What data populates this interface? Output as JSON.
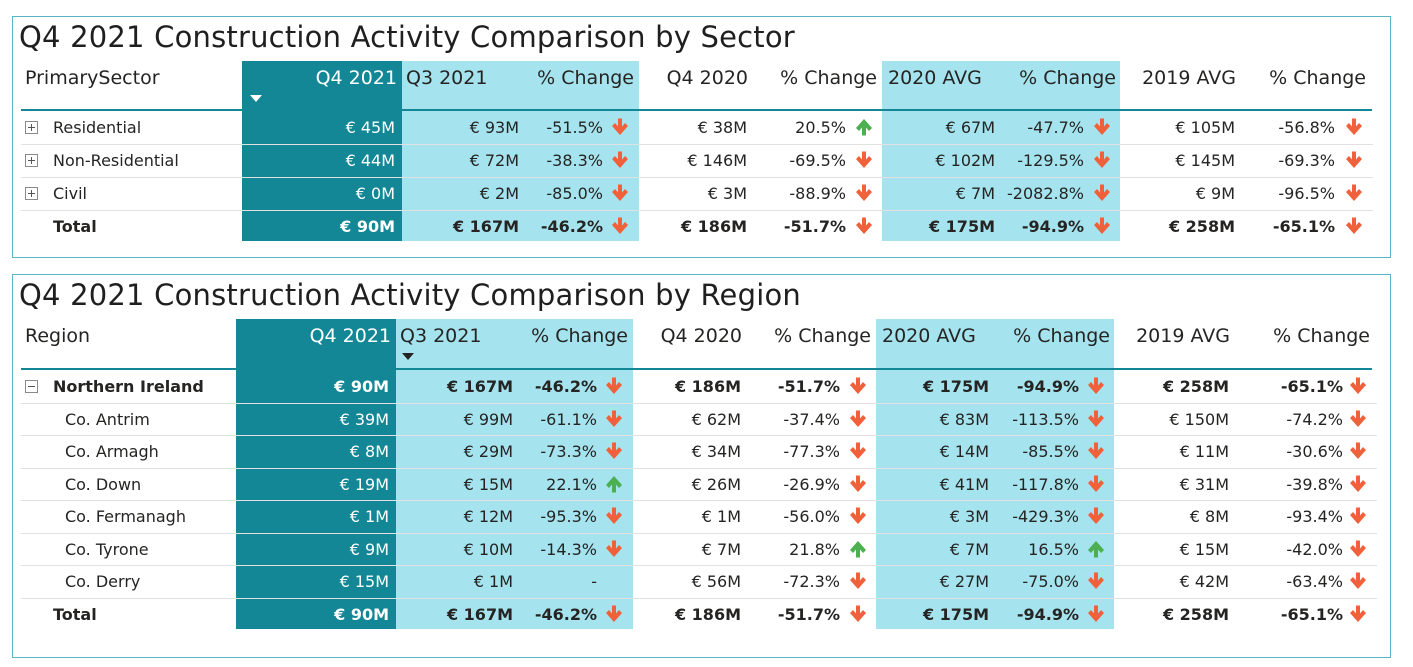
{
  "colors": {
    "dark_band": "#138796",
    "light_band": "#a5e4ee",
    "arrow_down": "#f0603a",
    "arrow_up": "#4caf50"
  },
  "sector": {
    "title": "Q4 2021 Construction Activity Comparison by Sector",
    "columns": [
      "PrimarySector",
      "Q4 2021",
      "Q3 2021",
      "% Change",
      "Q4 2020",
      "% Change",
      "2020 AVG",
      "% Change",
      "2019 AVG",
      "% Change"
    ],
    "rows": [
      {
        "name": "Residential",
        "values": [
          "€ 45M",
          "€ 93M",
          "-51.5%",
          "€ 38M",
          "20.5%",
          "€ 67M",
          "-47.7%",
          "€ 105M",
          "-56.8%"
        ],
        "arrows": [
          "down",
          "up",
          "down",
          "down"
        ]
      },
      {
        "name": "Non-Residential",
        "values": [
          "€ 44M",
          "€ 72M",
          "-38.3%",
          "€ 146M",
          "-69.5%",
          "€ 102M",
          "-129.5%",
          "€ 145M",
          "-69.3%"
        ],
        "arrows": [
          "down",
          "down",
          "down",
          "down"
        ]
      },
      {
        "name": "Civil",
        "values": [
          "€ 0M",
          "€ 2M",
          "-85.0%",
          "€ 3M",
          "-88.9%",
          "€ 7M",
          "-2082.8%",
          "€ 9M",
          "-96.5%"
        ],
        "arrows": [
          "down",
          "down",
          "down",
          "down"
        ]
      }
    ],
    "total": {
      "name": "Total",
      "values": [
        "€ 90M",
        "€ 167M",
        "-46.2%",
        "€ 186M",
        "-51.7%",
        "€ 175M",
        "-94.9%",
        "€ 258M",
        "-65.1%"
      ],
      "arrows": [
        "down",
        "down",
        "down",
        "down"
      ]
    }
  },
  "region": {
    "title": "Q4 2021 Construction Activity Comparison by Region",
    "columns": [
      "Region",
      "Q4 2021",
      "Q3 2021",
      "% Change",
      "Q4 2020",
      "% Change",
      "2020 AVG",
      "% Change",
      "2019 AVG",
      "% Change"
    ],
    "parent": {
      "name": "Northern Ireland",
      "values": [
        "€ 90M",
        "€ 167M",
        "-46.2%",
        "€ 186M",
        "-51.7%",
        "€ 175M",
        "-94.9%",
        "€ 258M",
        "-65.1%"
      ],
      "arrows": [
        "down",
        "down",
        "down",
        "down"
      ]
    },
    "rows": [
      {
        "name": "Co. Antrim",
        "values": [
          "€ 39M",
          "€ 99M",
          "-61.1%",
          "€ 62M",
          "-37.4%",
          "€ 83M",
          "-113.5%",
          "€ 150M",
          "-74.2%"
        ],
        "arrows": [
          "down",
          "down",
          "down",
          "down"
        ]
      },
      {
        "name": "Co. Armagh",
        "values": [
          "€ 8M",
          "€ 29M",
          "-73.3%",
          "€ 34M",
          "-77.3%",
          "€ 14M",
          "-85.5%",
          "€ 11M",
          "-30.6%"
        ],
        "arrows": [
          "down",
          "down",
          "down",
          "down"
        ]
      },
      {
        "name": "Co. Down",
        "values": [
          "€ 19M",
          "€ 15M",
          "22.1%",
          "€ 26M",
          "-26.9%",
          "€ 41M",
          "-117.8%",
          "€ 31M",
          "-39.8%"
        ],
        "arrows": [
          "up",
          "down",
          "down",
          "down"
        ]
      },
      {
        "name": "Co. Fermanagh",
        "values": [
          "€ 1M",
          "€ 12M",
          "-95.3%",
          "€ 1M",
          "-56.0%",
          "€ 3M",
          "-429.3%",
          "€ 8M",
          "-93.4%"
        ],
        "arrows": [
          "down",
          "down",
          "down",
          "down"
        ]
      },
      {
        "name": "Co. Tyrone",
        "values": [
          "€ 9M",
          "€ 10M",
          "-14.3%",
          "€ 7M",
          "21.8%",
          "€ 7M",
          "16.5%",
          "€ 15M",
          "-42.0%"
        ],
        "arrows": [
          "down",
          "up",
          "up",
          "down"
        ]
      },
      {
        "name": "Co. Derry",
        "values": [
          "€ 15M",
          "€ 1M",
          "-",
          "€ 56M",
          "-72.3%",
          "€ 27M",
          "-75.0%",
          "€ 42M",
          "-63.4%"
        ],
        "arrows": [
          "none",
          "down",
          "down",
          "down"
        ]
      }
    ],
    "total": {
      "name": "Total",
      "values": [
        "€ 90M",
        "€ 167M",
        "-46.2%",
        "€ 186M",
        "-51.7%",
        "€ 175M",
        "-94.9%",
        "€ 258M",
        "-65.1%"
      ],
      "arrows": [
        "down",
        "down",
        "down",
        "down"
      ]
    }
  }
}
